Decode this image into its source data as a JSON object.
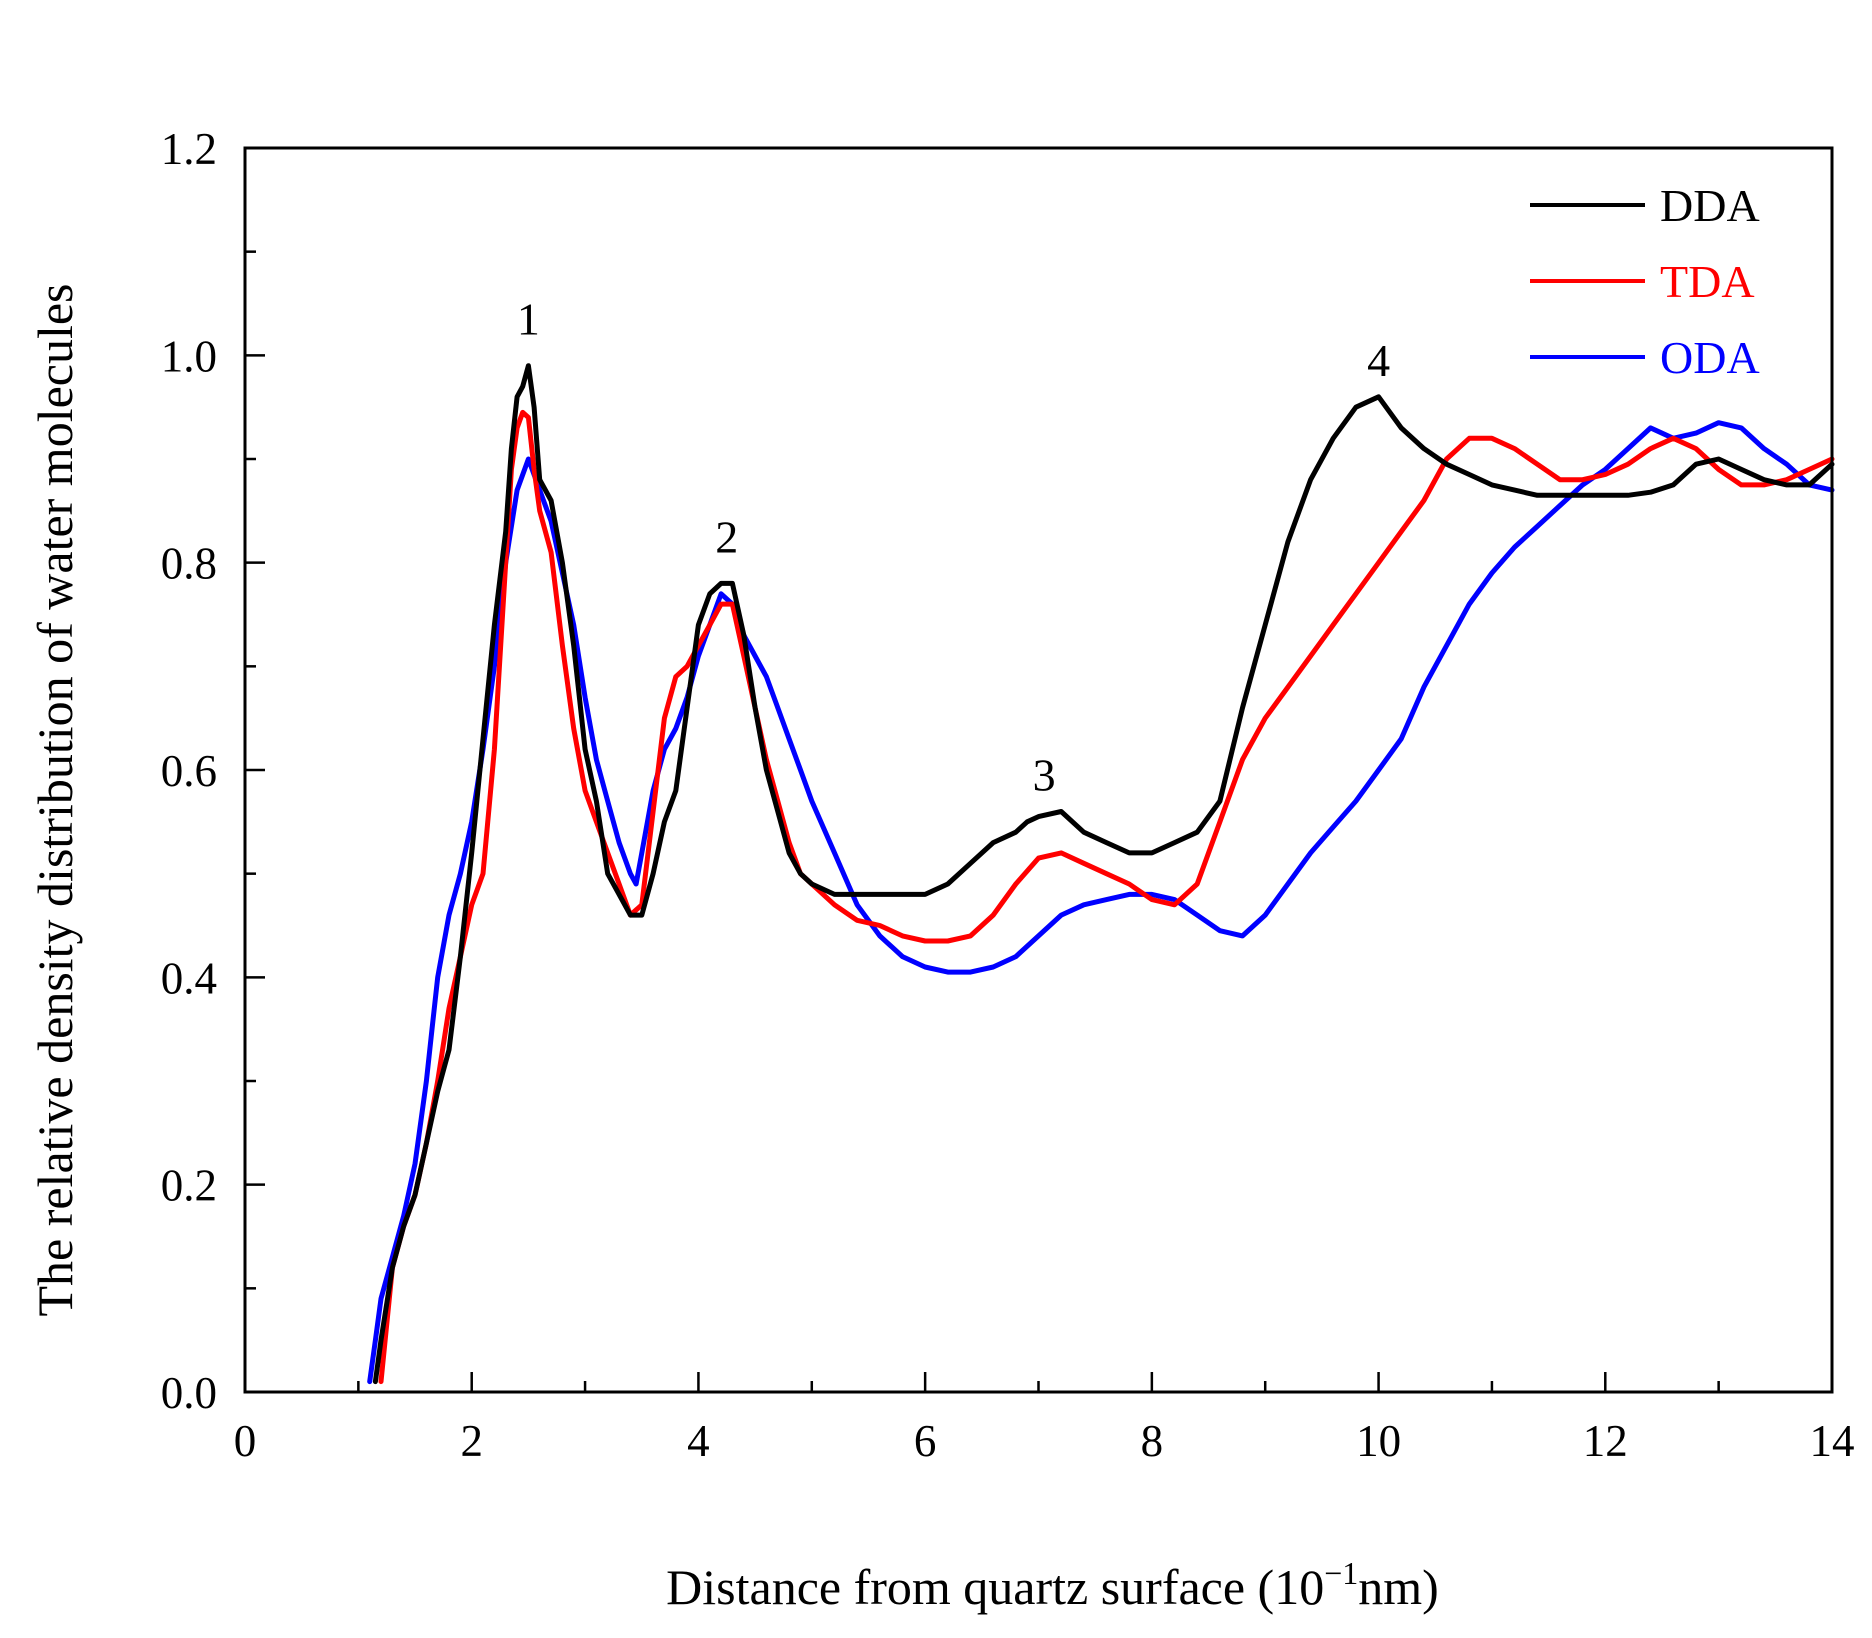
{
  "chart_data": {
    "type": "line",
    "title": "",
    "xlabel_main": "Distance from quartz surface (10",
    "xlabel_sup": "−1",
    "xlabel_tail": "nm)",
    "ylabel": "The relative density distribution of water molecules",
    "xlim": [
      0,
      14
    ],
    "ylim": [
      0,
      1.2
    ],
    "x_ticks": [
      "0",
      "2",
      "4",
      "6",
      "8",
      "10",
      "12",
      "14"
    ],
    "y_ticks": [
      "0.0",
      "0.2",
      "0.4",
      "0.6",
      "0.8",
      "1.0",
      "1.2"
    ],
    "legend_position": "top-right",
    "annotations": [
      {
        "label": "1",
        "x": 2.5,
        "y": 1.02
      },
      {
        "label": "2",
        "x": 4.25,
        "y": 0.81
      },
      {
        "label": "3",
        "x": 7.05,
        "y": 0.58
      },
      {
        "label": "4",
        "x": 10.0,
        "y": 0.98
      }
    ],
    "series": [
      {
        "name": "DDA",
        "color": "#000000",
        "x": [
          1.15,
          1.2,
          1.3,
          1.4,
          1.5,
          1.6,
          1.7,
          1.8,
          1.9,
          2.0,
          2.1,
          2.2,
          2.3,
          2.35,
          2.4,
          2.45,
          2.5,
          2.55,
          2.6,
          2.7,
          2.8,
          2.9,
          3.0,
          3.1,
          3.2,
          3.3,
          3.4,
          3.5,
          3.6,
          3.7,
          3.8,
          3.9,
          4.0,
          4.1,
          4.2,
          4.3,
          4.4,
          4.5,
          4.6,
          4.7,
          4.8,
          4.9,
          5.0,
          5.2,
          5.4,
          5.6,
          5.8,
          6.0,
          6.2,
          6.4,
          6.6,
          6.8,
          6.9,
          7.0,
          7.2,
          7.4,
          7.6,
          7.8,
          8.0,
          8.2,
          8.4,
          8.6,
          8.8,
          9.0,
          9.2,
          9.4,
          9.6,
          9.8,
          10.0,
          10.2,
          10.4,
          10.6,
          10.8,
          11.0,
          11.2,
          11.4,
          11.6,
          11.8,
          12.0,
          12.2,
          12.4,
          12.6,
          12.8,
          13.0,
          13.2,
          13.4,
          13.6,
          13.8,
          14.0
        ],
        "values": [
          0.01,
          0.05,
          0.12,
          0.16,
          0.19,
          0.24,
          0.29,
          0.33,
          0.42,
          0.52,
          0.63,
          0.74,
          0.83,
          0.91,
          0.96,
          0.97,
          0.99,
          0.95,
          0.88,
          0.86,
          0.8,
          0.72,
          0.62,
          0.57,
          0.5,
          0.48,
          0.46,
          0.46,
          0.5,
          0.55,
          0.58,
          0.66,
          0.74,
          0.77,
          0.78,
          0.78,
          0.73,
          0.66,
          0.6,
          0.56,
          0.52,
          0.5,
          0.49,
          0.48,
          0.48,
          0.48,
          0.48,
          0.48,
          0.49,
          0.51,
          0.53,
          0.54,
          0.55,
          0.555,
          0.56,
          0.54,
          0.53,
          0.52,
          0.52,
          0.53,
          0.54,
          0.57,
          0.66,
          0.74,
          0.82,
          0.88,
          0.92,
          0.95,
          0.96,
          0.93,
          0.91,
          0.895,
          0.885,
          0.875,
          0.87,
          0.865,
          0.865,
          0.865,
          0.865,
          0.865,
          0.868,
          0.875,
          0.895,
          0.9,
          0.89,
          0.88,
          0.875,
          0.875,
          0.895
        ]
      },
      {
        "name": "TDA",
        "color": "#ff0000",
        "x": [
          1.2,
          1.3,
          1.4,
          1.5,
          1.6,
          1.7,
          1.8,
          1.9,
          2.0,
          2.1,
          2.2,
          2.3,
          2.35,
          2.4,
          2.45,
          2.5,
          2.55,
          2.6,
          2.7,
          2.8,
          2.9,
          3.0,
          3.1,
          3.2,
          3.3,
          3.4,
          3.5,
          3.6,
          3.7,
          3.8,
          3.9,
          4.0,
          4.1,
          4.2,
          4.3,
          4.4,
          4.5,
          4.6,
          4.7,
          4.8,
          4.9,
          5.0,
          5.2,
          5.4,
          5.6,
          5.8,
          6.0,
          6.2,
          6.4,
          6.6,
          6.8,
          7.0,
          7.2,
          7.4,
          7.6,
          7.8,
          8.0,
          8.2,
          8.4,
          8.6,
          8.8,
          9.0,
          9.2,
          9.4,
          9.6,
          9.8,
          10.0,
          10.2,
          10.4,
          10.6,
          10.8,
          11.0,
          11.2,
          11.4,
          11.6,
          11.8,
          12.0,
          12.2,
          12.4,
          12.6,
          12.8,
          13.0,
          13.2,
          13.4,
          13.6,
          13.8,
          14.0
        ],
        "values": [
          0.01,
          0.12,
          0.16,
          0.19,
          0.24,
          0.3,
          0.37,
          0.42,
          0.47,
          0.5,
          0.62,
          0.8,
          0.89,
          0.93,
          0.945,
          0.94,
          0.89,
          0.85,
          0.81,
          0.72,
          0.64,
          0.58,
          0.55,
          0.52,
          0.49,
          0.46,
          0.47,
          0.56,
          0.65,
          0.69,
          0.7,
          0.72,
          0.74,
          0.76,
          0.76,
          0.71,
          0.66,
          0.61,
          0.57,
          0.53,
          0.5,
          0.49,
          0.47,
          0.455,
          0.45,
          0.44,
          0.435,
          0.435,
          0.44,
          0.46,
          0.49,
          0.515,
          0.52,
          0.51,
          0.5,
          0.49,
          0.475,
          0.47,
          0.49,
          0.55,
          0.61,
          0.65,
          0.68,
          0.71,
          0.74,
          0.77,
          0.8,
          0.83,
          0.86,
          0.9,
          0.92,
          0.92,
          0.91,
          0.895,
          0.88,
          0.88,
          0.885,
          0.895,
          0.91,
          0.92,
          0.91,
          0.89,
          0.875,
          0.875,
          0.88,
          0.89,
          0.9
        ]
      },
      {
        "name": "ODA",
        "color": "#0000ff",
        "x": [
          1.1,
          1.15,
          1.2,
          1.3,
          1.4,
          1.5,
          1.6,
          1.65,
          1.7,
          1.8,
          1.9,
          2.0,
          2.1,
          2.2,
          2.3,
          2.4,
          2.5,
          2.6,
          2.7,
          2.8,
          2.9,
          3.0,
          3.1,
          3.2,
          3.3,
          3.4,
          3.45,
          3.5,
          3.6,
          3.7,
          3.8,
          3.9,
          4.0,
          4.1,
          4.2,
          4.3,
          4.4,
          4.5,
          4.6,
          4.7,
          4.8,
          4.9,
          5.0,
          5.2,
          5.4,
          5.6,
          5.8,
          6.0,
          6.2,
          6.4,
          6.6,
          6.8,
          7.0,
          7.2,
          7.4,
          7.6,
          7.8,
          8.0,
          8.2,
          8.4,
          8.6,
          8.8,
          9.0,
          9.2,
          9.4,
          9.6,
          9.8,
          10.0,
          10.2,
          10.4,
          10.6,
          10.8,
          11.0,
          11.2,
          11.4,
          11.6,
          11.8,
          12.0,
          12.2,
          12.4,
          12.6,
          12.8,
          13.0,
          13.2,
          13.4,
          13.6,
          13.8,
          14.0
        ],
        "values": [
          0.01,
          0.05,
          0.09,
          0.13,
          0.17,
          0.22,
          0.3,
          0.35,
          0.4,
          0.46,
          0.5,
          0.55,
          0.62,
          0.7,
          0.8,
          0.87,
          0.9,
          0.87,
          0.84,
          0.79,
          0.74,
          0.67,
          0.61,
          0.57,
          0.53,
          0.5,
          0.49,
          0.52,
          0.58,
          0.62,
          0.64,
          0.67,
          0.71,
          0.74,
          0.77,
          0.76,
          0.73,
          0.71,
          0.69,
          0.66,
          0.63,
          0.6,
          0.57,
          0.52,
          0.47,
          0.44,
          0.42,
          0.41,
          0.405,
          0.405,
          0.41,
          0.42,
          0.44,
          0.46,
          0.47,
          0.475,
          0.48,
          0.48,
          0.475,
          0.46,
          0.445,
          0.44,
          0.46,
          0.49,
          0.52,
          0.545,
          0.57,
          0.6,
          0.63,
          0.68,
          0.72,
          0.76,
          0.79,
          0.815,
          0.835,
          0.855,
          0.875,
          0.89,
          0.91,
          0.93,
          0.92,
          0.925,
          0.935,
          0.93,
          0.91,
          0.895,
          0.875,
          0.87
        ]
      }
    ]
  }
}
